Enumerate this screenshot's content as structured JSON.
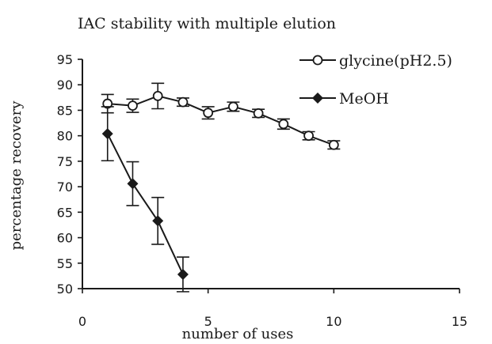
{
  "chart_data": {
    "type": "line",
    "title": "IAC stability with multiple elution",
    "xlabel": "number of uses",
    "ylabel": "percentage recovery",
    "xlim": [
      0,
      15
    ],
    "ylim": [
      50,
      95
    ],
    "xticks": [
      "0",
      "5",
      "10",
      "15"
    ],
    "yticks": [
      "50",
      "55",
      "60",
      "65",
      "70",
      "75",
      "80",
      "85",
      "90",
      "95"
    ],
    "legend_position": "top-right",
    "series": [
      {
        "name": "glycine(pH2.5)",
        "marker": "open-circle",
        "x": [
          1,
          2,
          3,
          4,
          5,
          6,
          7,
          8,
          9,
          10
        ],
        "y": [
          86.3,
          85.9,
          87.8,
          86.6,
          84.5,
          85.7,
          84.4,
          82.3,
          80.0,
          78.2
        ],
        "error": [
          1.8,
          1.3,
          2.5,
          0.8,
          1.2,
          0.9,
          0.8,
          1.0,
          0.8,
          0.8
        ]
      },
      {
        "name": "MeOH",
        "marker": "filled-diamond",
        "x": [
          1,
          2,
          3,
          4
        ],
        "y": [
          80.4,
          70.6,
          63.3,
          52.8
        ],
        "error": [
          5.3,
          4.3,
          4.6,
          3.4
        ]
      }
    ]
  }
}
